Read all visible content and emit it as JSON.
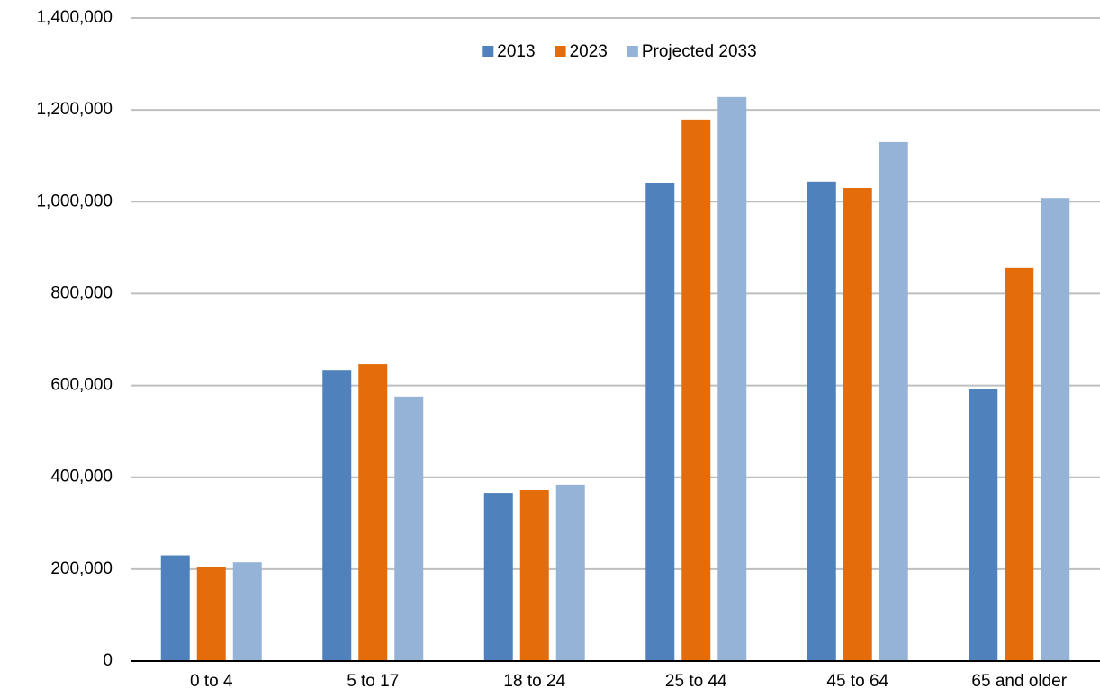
{
  "chart_data": {
    "type": "bar",
    "categories": [
      "0 to 4",
      "5 to 17",
      "18 to 24",
      "25 to 44",
      "45 to 64",
      "65 and older"
    ],
    "series": [
      {
        "name": "2013",
        "color": "#4f81bd",
        "values": [
          230000,
          634000,
          366000,
          1040000,
          1044000,
          593000
        ]
      },
      {
        "name": "2023",
        "color": "#e46c0a",
        "values": [
          204000,
          646000,
          372000,
          1179000,
          1030000,
          856000
        ]
      },
      {
        "name": "Projected 2033",
        "color": "#95b3d7",
        "values": [
          215000,
          576000,
          384000,
          1228000,
          1130000,
          1008000
        ]
      }
    ],
    "ylim": [
      0,
      1400000
    ],
    "yticks": [
      0,
      {
        "value": 200000,
        "label": "200,000"
      },
      {
        "value": 400000,
        "label": "400,000"
      },
      {
        "value": 600000,
        "label": "600,000"
      },
      {
        "value": 800000,
        "label": "800,000"
      },
      {
        "value": 1000000,
        "label": "1,000,000"
      },
      {
        "value": 1200000,
        "label": "1,200,000"
      },
      {
        "value": 1400000,
        "label": "1,400,000"
      }
    ],
    "grid": true,
    "legend": "top"
  }
}
